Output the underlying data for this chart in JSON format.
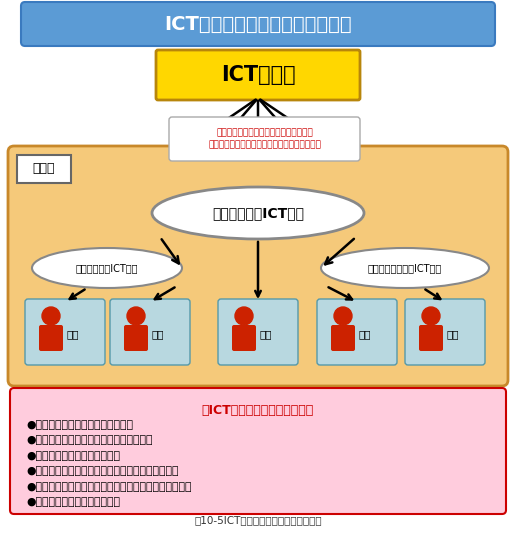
{
  "title": "ICT支援員の機能と具体的な業務",
  "title_bg": "#5b9bd5",
  "title_color": "#ffffff",
  "ict_label": "ICT支援員",
  "ict_box_color": "#ffd700",
  "ict_box_edge": "#b8860b",
  "note_text": "授業や研修、校務において、教員と相談\nしたり、依頼を受けたりしながら業務を行う。",
  "note_color": "#cc0000",
  "school_bg": "#f5c97a",
  "school_label": "学　校",
  "center_ellipse_label": "授業におけるICT支援",
  "left_ellipse_label": "校務におけるICT支援",
  "right_ellipse_label": "教員研修におけるICT支援",
  "ellipse_fill": "#ffffff",
  "ellipse_edge": "#888888",
  "teacher_box_color": "#b8d8e0",
  "teacher_label": "教員",
  "bullet_title": "＜ICT支援員の具体的な業務＞",
  "bullet_color": "#cc0000",
  "bullets": [
    "●機器・ソフトウェアの設定や操作",
    "●機器・ソフトウェアの設定や操作の説明",
    "●機器等の簡単なメンテナンス",
    "●機器・ソフトウェアや教材等の紹介と活用の助言",
    "●情報モラルに関する教材や事例等の紹介と活用の助言",
    "●ディジタル教材作成等の支援"
  ],
  "bullet_box_color": "#ffccdd",
  "bullet_box_edge": "#cc0000",
  "caption": "図10-5ICT支援員の機能と具体的な業務",
  "bg_color": "#ffffff",
  "person_color": "#cc2200"
}
